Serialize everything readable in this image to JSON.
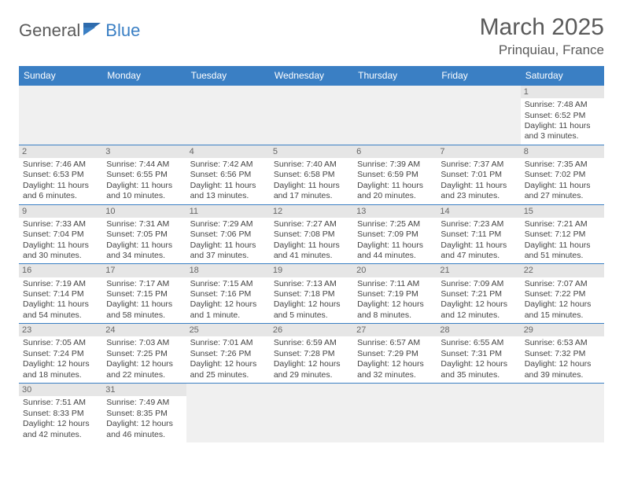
{
  "logo": {
    "textA": "General",
    "textB": "Blue"
  },
  "title": "March 2025",
  "location": "Prinquiau, France",
  "colors": {
    "brand": "#3a7fc4",
    "headerText": "#ffffff",
    "bodyText": "#444444",
    "mutedText": "#5a5a5a",
    "dayNumBg": "#e6e6e6",
    "emptyBg": "#f0f0f0",
    "pageBg": "#ffffff"
  },
  "layout": {
    "pageWidth": 792,
    "pageHeight": 612,
    "columns": 7,
    "rows": 6,
    "dowFontSize": 12,
    "cellFontSize": 10.5,
    "titleFontSize": 30,
    "locationFontSize": 17
  },
  "daysOfWeek": [
    "Sunday",
    "Monday",
    "Tuesday",
    "Wednesday",
    "Thursday",
    "Friday",
    "Saturday"
  ],
  "weeks": [
    [
      null,
      null,
      null,
      null,
      null,
      null,
      {
        "n": "1",
        "sunrise": "Sunrise: 7:48 AM",
        "sunset": "Sunset: 6:52 PM",
        "daylight": "Daylight: 11 hours and 3 minutes."
      }
    ],
    [
      {
        "n": "2",
        "sunrise": "Sunrise: 7:46 AM",
        "sunset": "Sunset: 6:53 PM",
        "daylight": "Daylight: 11 hours and 6 minutes."
      },
      {
        "n": "3",
        "sunrise": "Sunrise: 7:44 AM",
        "sunset": "Sunset: 6:55 PM",
        "daylight": "Daylight: 11 hours and 10 minutes."
      },
      {
        "n": "4",
        "sunrise": "Sunrise: 7:42 AM",
        "sunset": "Sunset: 6:56 PM",
        "daylight": "Daylight: 11 hours and 13 minutes."
      },
      {
        "n": "5",
        "sunrise": "Sunrise: 7:40 AM",
        "sunset": "Sunset: 6:58 PM",
        "daylight": "Daylight: 11 hours and 17 minutes."
      },
      {
        "n": "6",
        "sunrise": "Sunrise: 7:39 AM",
        "sunset": "Sunset: 6:59 PM",
        "daylight": "Daylight: 11 hours and 20 minutes."
      },
      {
        "n": "7",
        "sunrise": "Sunrise: 7:37 AM",
        "sunset": "Sunset: 7:01 PM",
        "daylight": "Daylight: 11 hours and 23 minutes."
      },
      {
        "n": "8",
        "sunrise": "Sunrise: 7:35 AM",
        "sunset": "Sunset: 7:02 PM",
        "daylight": "Daylight: 11 hours and 27 minutes."
      }
    ],
    [
      {
        "n": "9",
        "sunrise": "Sunrise: 7:33 AM",
        "sunset": "Sunset: 7:04 PM",
        "daylight": "Daylight: 11 hours and 30 minutes."
      },
      {
        "n": "10",
        "sunrise": "Sunrise: 7:31 AM",
        "sunset": "Sunset: 7:05 PM",
        "daylight": "Daylight: 11 hours and 34 minutes."
      },
      {
        "n": "11",
        "sunrise": "Sunrise: 7:29 AM",
        "sunset": "Sunset: 7:06 PM",
        "daylight": "Daylight: 11 hours and 37 minutes."
      },
      {
        "n": "12",
        "sunrise": "Sunrise: 7:27 AM",
        "sunset": "Sunset: 7:08 PM",
        "daylight": "Daylight: 11 hours and 41 minutes."
      },
      {
        "n": "13",
        "sunrise": "Sunrise: 7:25 AM",
        "sunset": "Sunset: 7:09 PM",
        "daylight": "Daylight: 11 hours and 44 minutes."
      },
      {
        "n": "14",
        "sunrise": "Sunrise: 7:23 AM",
        "sunset": "Sunset: 7:11 PM",
        "daylight": "Daylight: 11 hours and 47 minutes."
      },
      {
        "n": "15",
        "sunrise": "Sunrise: 7:21 AM",
        "sunset": "Sunset: 7:12 PM",
        "daylight": "Daylight: 11 hours and 51 minutes."
      }
    ],
    [
      {
        "n": "16",
        "sunrise": "Sunrise: 7:19 AM",
        "sunset": "Sunset: 7:14 PM",
        "daylight": "Daylight: 11 hours and 54 minutes."
      },
      {
        "n": "17",
        "sunrise": "Sunrise: 7:17 AM",
        "sunset": "Sunset: 7:15 PM",
        "daylight": "Daylight: 11 hours and 58 minutes."
      },
      {
        "n": "18",
        "sunrise": "Sunrise: 7:15 AM",
        "sunset": "Sunset: 7:16 PM",
        "daylight": "Daylight: 12 hours and 1 minute."
      },
      {
        "n": "19",
        "sunrise": "Sunrise: 7:13 AM",
        "sunset": "Sunset: 7:18 PM",
        "daylight": "Daylight: 12 hours and 5 minutes."
      },
      {
        "n": "20",
        "sunrise": "Sunrise: 7:11 AM",
        "sunset": "Sunset: 7:19 PM",
        "daylight": "Daylight: 12 hours and 8 minutes."
      },
      {
        "n": "21",
        "sunrise": "Sunrise: 7:09 AM",
        "sunset": "Sunset: 7:21 PM",
        "daylight": "Daylight: 12 hours and 12 minutes."
      },
      {
        "n": "22",
        "sunrise": "Sunrise: 7:07 AM",
        "sunset": "Sunset: 7:22 PM",
        "daylight": "Daylight: 12 hours and 15 minutes."
      }
    ],
    [
      {
        "n": "23",
        "sunrise": "Sunrise: 7:05 AM",
        "sunset": "Sunset: 7:24 PM",
        "daylight": "Daylight: 12 hours and 18 minutes."
      },
      {
        "n": "24",
        "sunrise": "Sunrise: 7:03 AM",
        "sunset": "Sunset: 7:25 PM",
        "daylight": "Daylight: 12 hours and 22 minutes."
      },
      {
        "n": "25",
        "sunrise": "Sunrise: 7:01 AM",
        "sunset": "Sunset: 7:26 PM",
        "daylight": "Daylight: 12 hours and 25 minutes."
      },
      {
        "n": "26",
        "sunrise": "Sunrise: 6:59 AM",
        "sunset": "Sunset: 7:28 PM",
        "daylight": "Daylight: 12 hours and 29 minutes."
      },
      {
        "n": "27",
        "sunrise": "Sunrise: 6:57 AM",
        "sunset": "Sunset: 7:29 PM",
        "daylight": "Daylight: 12 hours and 32 minutes."
      },
      {
        "n": "28",
        "sunrise": "Sunrise: 6:55 AM",
        "sunset": "Sunset: 7:31 PM",
        "daylight": "Daylight: 12 hours and 35 minutes."
      },
      {
        "n": "29",
        "sunrise": "Sunrise: 6:53 AM",
        "sunset": "Sunset: 7:32 PM",
        "daylight": "Daylight: 12 hours and 39 minutes."
      }
    ],
    [
      {
        "n": "30",
        "sunrise": "Sunrise: 7:51 AM",
        "sunset": "Sunset: 8:33 PM",
        "daylight": "Daylight: 12 hours and 42 minutes."
      },
      {
        "n": "31",
        "sunrise": "Sunrise: 7:49 AM",
        "sunset": "Sunset: 8:35 PM",
        "daylight": "Daylight: 12 hours and 46 minutes."
      },
      null,
      null,
      null,
      null,
      null
    ]
  ]
}
